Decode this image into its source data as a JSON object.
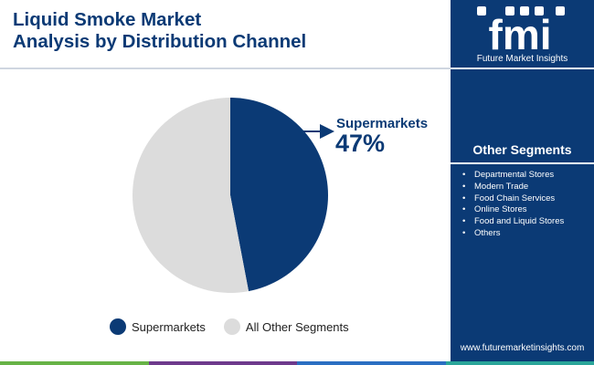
{
  "title": {
    "line1": "Liquid Smoke Market",
    "line2": "Analysis by Distribution Channel"
  },
  "colors": {
    "brand_navy": "#0b3a75",
    "other_grey": "#dcdcdc",
    "bar_green": "#67b346",
    "bar_purple": "#6e3a8c",
    "bar_blue": "#2b6fc2",
    "bar_teal": "#2aa59a"
  },
  "logo": {
    "mark": "fmi",
    "text": "Future Market Insights"
  },
  "callout": {
    "label": "Supermarkets",
    "value": "47%"
  },
  "chart_data": {
    "type": "pie",
    "slices": [
      {
        "label": "Supermarkets",
        "value": 47,
        "color": "#0b3a75"
      },
      {
        "label": "All Other Segments",
        "value": 53,
        "color": "#dcdcdc"
      }
    ],
    "start_angle_deg": 0,
    "direction": "clockwise",
    "legend_position": "bottom"
  },
  "legend": {
    "items": [
      {
        "label": "Supermarkets",
        "color": "#0b3a75"
      },
      {
        "label": "All Other Segments",
        "color": "#dcdcdc"
      }
    ]
  },
  "other_segments": {
    "title": "Other Segments",
    "items": [
      "Departmental Stores",
      "Modern Trade",
      "Food Chain Services",
      "Online Stores",
      "Food and Liquid Stores",
      "Others"
    ]
  },
  "footer": {
    "url": "www.futuremarketinsights.com"
  }
}
